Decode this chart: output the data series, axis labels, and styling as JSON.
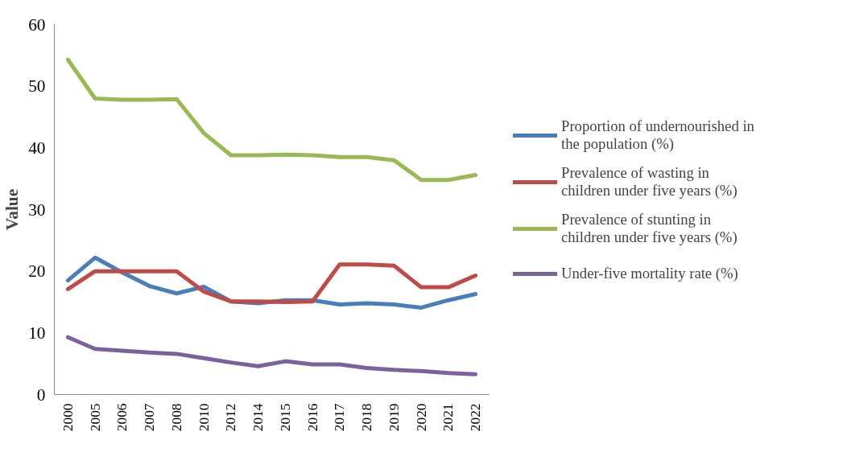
{
  "chart_data": {
    "type": "line",
    "ylabel": "Value",
    "categories": [
      "2000",
      "2005",
      "2006",
      "2007",
      "2008",
      "2010",
      "2012",
      "2014",
      "2015",
      "2016",
      "2017",
      "2018",
      "2019",
      "2020",
      "2021",
      "2022"
    ],
    "series": [
      {
        "name": "Proportion of undernourished in the population (%)",
        "color": "#4a7ebb",
        "values": [
          18.5,
          22.2,
          19.8,
          17.6,
          16.4,
          17.5,
          15.1,
          14.8,
          15.3,
          15.3,
          14.6,
          14.8,
          14.6,
          14.1,
          15.3,
          16.3
        ]
      },
      {
        "name": "Prevalence of wasting in children under five years (%)",
        "color": "#be4b48",
        "values": [
          17.1,
          20.0,
          20.0,
          20.0,
          20.0,
          16.7,
          15.1,
          15.1,
          15.0,
          15.1,
          21.1,
          21.1,
          20.9,
          17.4,
          17.4,
          19.3
        ]
      },
      {
        "name": "Prevalence of stunting in children under five years (%)",
        "color": "#98b954",
        "values": [
          54.3,
          48.0,
          47.8,
          47.8,
          47.9,
          42.4,
          38.8,
          38.8,
          38.9,
          38.8,
          38.5,
          38.5,
          38.0,
          34.8,
          34.8,
          35.6
        ]
      },
      {
        "name": "Under-five mortality rate (%)",
        "color": "#7d60a0",
        "values": [
          9.3,
          7.4,
          7.1,
          6.8,
          6.6,
          5.9,
          5.2,
          4.6,
          5.4,
          4.9,
          4.9,
          4.3,
          4.0,
          3.8,
          3.5,
          3.3
        ]
      }
    ],
    "ylim": [
      0,
      60
    ],
    "yticks": [
      0,
      10,
      20,
      30,
      40,
      50,
      60
    ],
    "grid": false,
    "legend": "right",
    "line_style": "solid"
  }
}
